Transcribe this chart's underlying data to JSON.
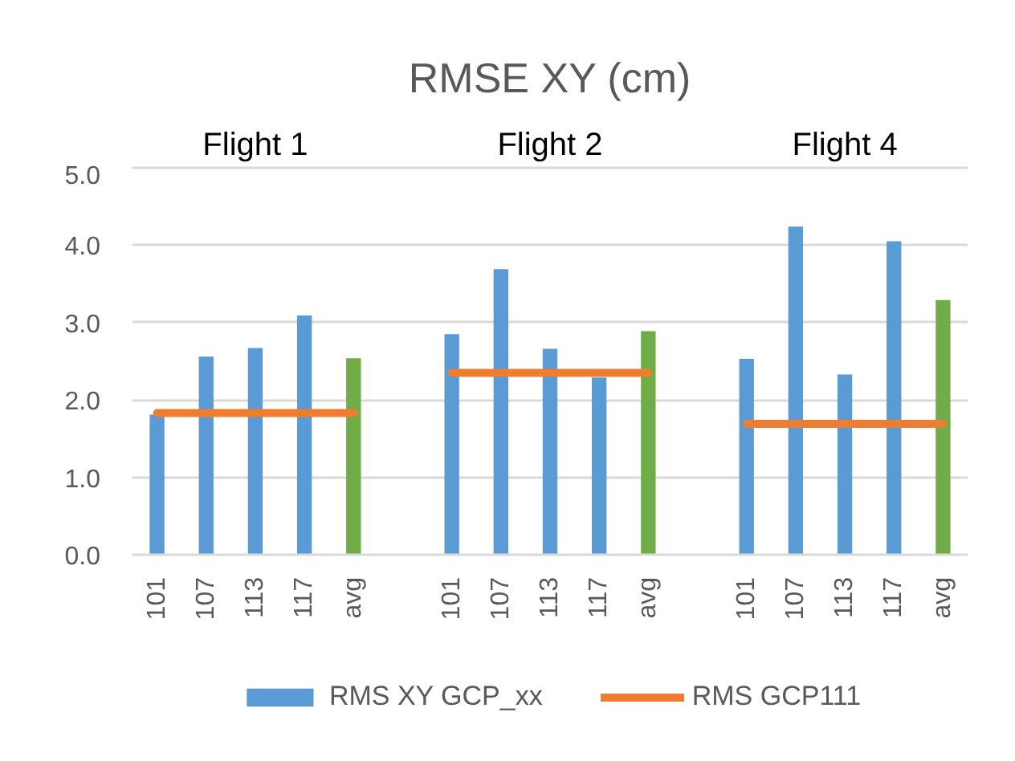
{
  "chart_data": {
    "type": "bar",
    "title": "RMSE XY (cm)",
    "categories": [
      "101",
      "107",
      "113",
      "117",
      "avg",
      null,
      "101",
      "107",
      "113",
      "117",
      "avg",
      null,
      "101",
      "107",
      "113",
      "117",
      "avg"
    ],
    "series": [
      {
        "name": "RMS XY GCP_xx",
        "colors": [
          "#5b9bd5",
          "#5b9bd5",
          "#5b9bd5",
          "#5b9bd5",
          "#70ad47",
          null,
          "#5b9bd5",
          "#5b9bd5",
          "#5b9bd5",
          "#5b9bd5",
          "#70ad47",
          null,
          "#5b9bd5",
          "#5b9bd5",
          "#5b9bd5",
          "#5b9bd5",
          "#70ad47"
        ],
        "values": [
          1.81,
          2.56,
          2.67,
          3.09,
          2.54,
          null,
          2.85,
          3.69,
          2.66,
          2.29,
          2.89,
          null,
          2.53,
          4.24,
          2.33,
          4.05,
          3.29
        ]
      },
      {
        "name": "RMS GCP111",
        "type": "line",
        "color": "#ed7d31",
        "values": [
          1.83,
          1.83,
          1.83,
          1.83,
          1.83,
          null,
          2.35,
          2.35,
          2.35,
          2.35,
          2.35,
          null,
          1.69,
          1.69,
          1.69,
          1.69,
          1.69
        ]
      }
    ],
    "ylim": [
      0,
      5
    ],
    "yticks": [
      {
        "value": 0,
        "label": "0.0"
      },
      {
        "value": 1,
        "label": "1.0"
      },
      {
        "value": 2,
        "label": "2.0"
      },
      {
        "value": 3,
        "label": "3.0"
      },
      {
        "value": 4,
        "label": "4.0"
      },
      {
        "value": 5,
        "label": "5.0"
      }
    ],
    "grid": "y",
    "legend": "bottom",
    "annotations": [
      "Flight 1",
      "Flight 2",
      "Flight 4"
    ]
  }
}
